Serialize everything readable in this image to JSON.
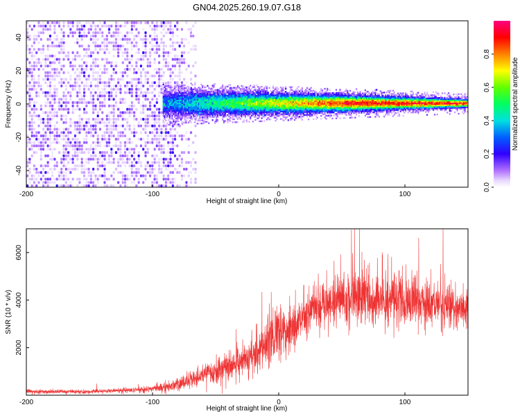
{
  "title": "GN04.2025.260.19.07.G18",
  "chart_data": [
    {
      "type": "heatmap",
      "name": "spectrogram",
      "xlabel": "Height of straight line (km)",
      "ylabel": "Frequency (Hz)",
      "xlim": [
        -200,
        150
      ],
      "ylim": [
        -50,
        50
      ],
      "xticks": [
        -200,
        -100,
        0,
        100
      ],
      "yticks": [
        -40,
        -20,
        0,
        20,
        40
      ],
      "colorbar": {
        "label": "Normalized spectral amplitude",
        "range": [
          0,
          1
        ],
        "ticks": [
          0.0,
          0.2,
          0.4,
          0.6,
          0.8
        ]
      },
      "description_points": {
        "noise_region_x": [
          -200,
          -80
        ],
        "signal_onset_x": -92,
        "signal_center_frequency": 0,
        "signal_band_halfwidth_near_onset": 10,
        "signal_band_halfwidth_far": 3
      }
    },
    {
      "type": "line",
      "name": "snr",
      "xlabel": "Height of straight line (km)",
      "ylabel": "SNR (10 * v/v)",
      "xlim": [
        -200,
        150
      ],
      "ylim": [
        0,
        7000
      ],
      "xticks": [
        -200,
        -100,
        0,
        100
      ],
      "yticks": [
        2000,
        4000,
        6000
      ],
      "color": "#ee3333",
      "envelope_x": [
        -200,
        -150,
        -100,
        -80,
        -60,
        -40,
        -20,
        -10,
        0,
        10,
        20,
        30,
        50,
        70,
        100,
        120,
        150
      ],
      "envelope_mean": [
        150,
        150,
        250,
        450,
        800,
        1200,
        1700,
        2200,
        2600,
        2700,
        3400,
        3800,
        4100,
        4100,
        4000,
        3800,
        3600
      ],
      "envelope_spread": [
        80,
        80,
        120,
        250,
        400,
        600,
        800,
        1000,
        1100,
        1000,
        900,
        1000,
        1100,
        1100,
        1000,
        900,
        800
      ],
      "peak_value": 7000,
      "peak_x": 60
    }
  ]
}
